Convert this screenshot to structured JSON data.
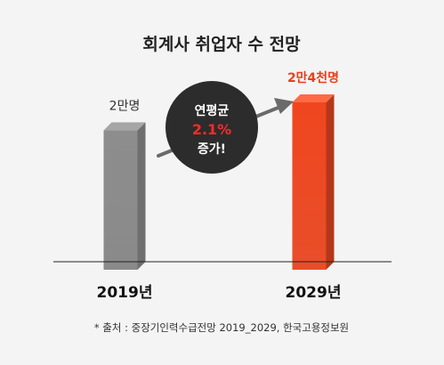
{
  "chart_data": {
    "type": "bar",
    "title": "회계사 취업자 수 전망",
    "categories": [
      "2019년",
      "2029년"
    ],
    "values": [
      20000,
      24000
    ],
    "data_labels": [
      "2만명",
      "2만4천명"
    ],
    "ylim": [
      0,
      24000
    ],
    "grid": false,
    "colors": [
      "#8a8a8a",
      "#ee4a25"
    ],
    "annotation": {
      "line1": "연평균",
      "value": "2.1%",
      "line3": "증가!"
    },
    "source": "* 출처 : 중장기인력수급전망 2019_2029, 한국고용정보원"
  }
}
